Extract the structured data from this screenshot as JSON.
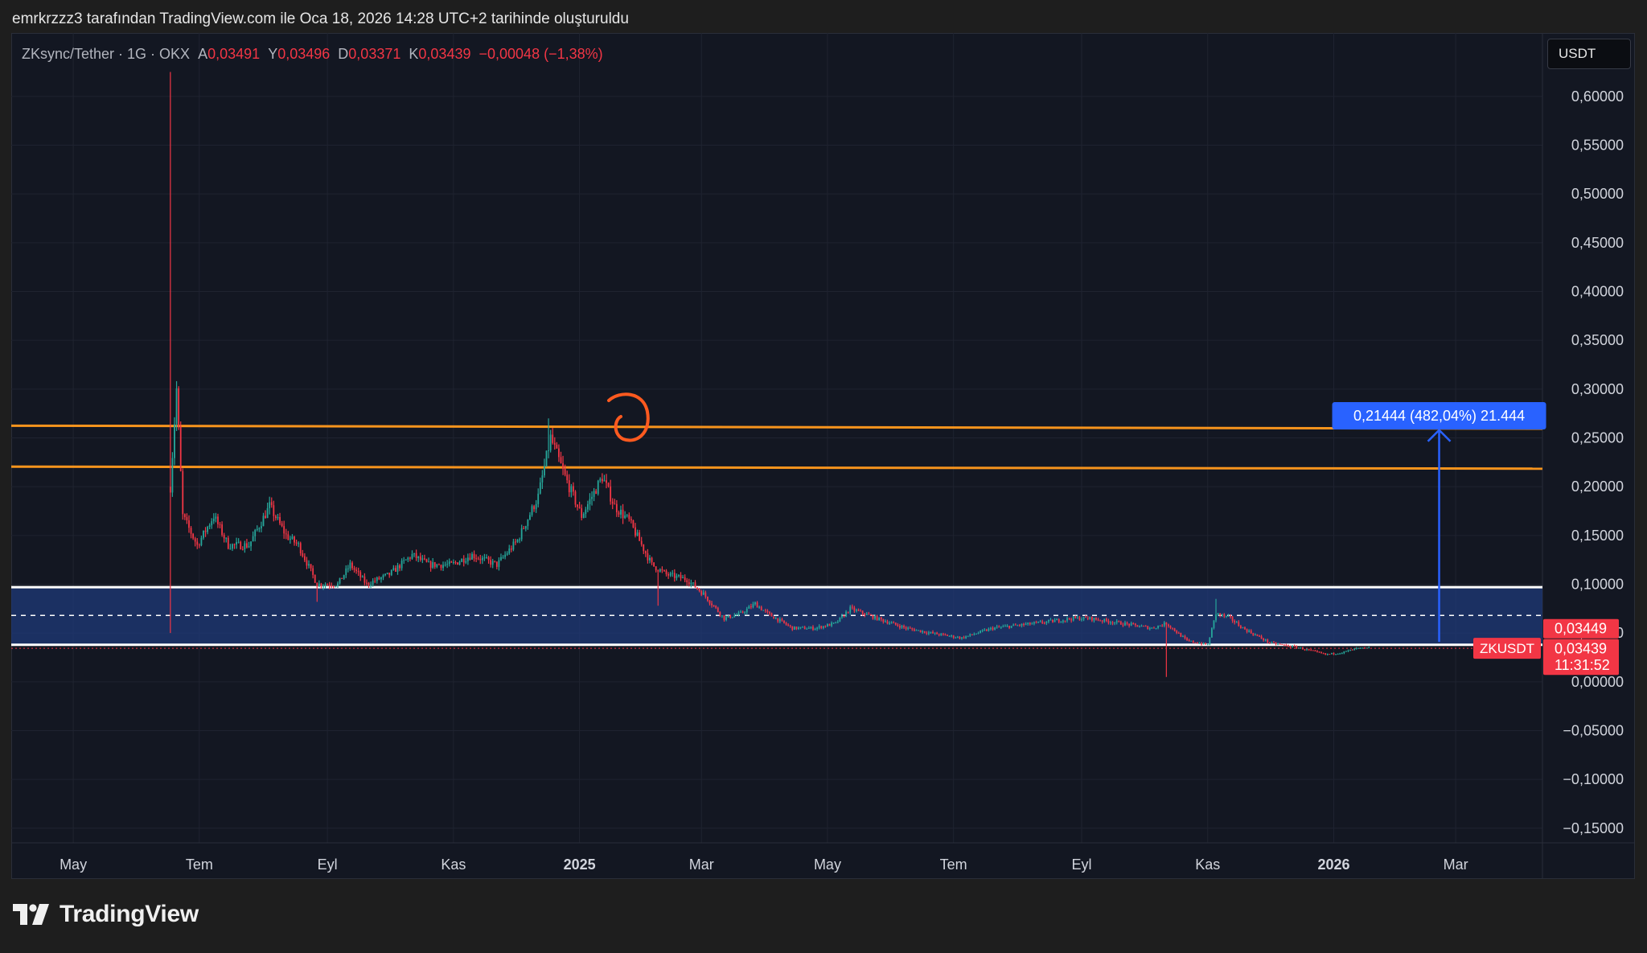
{
  "caption": "emrkrzzz3 tarafından TradingView.com ile Oca 18, 2026 14:28 UTC+2 tarihinde oluşturuldu",
  "legend": {
    "symbol": "ZKsync/Tether · 1G · OKX",
    "open_label": "A",
    "open": "0,03491",
    "high_label": "Y",
    "high": "0,03496",
    "low_label": "D",
    "low": "0,03371",
    "close_label": "K",
    "close": "0,03439",
    "change": "−0,00048 (−1,38%)"
  },
  "currency_button": "USDT",
  "brand": "TradingView",
  "colors": {
    "up": "#26a69a",
    "down": "#f23645",
    "orange": "#f7941d",
    "zone": "#1f3a78",
    "measure": "#2962ff",
    "annotation": "#ff5a1f"
  },
  "chart_data": {
    "type": "candlestick",
    "price_axis_ticks": [
      "0,60000",
      "0,55000",
      "0,50000",
      "0,45000",
      "0,40000",
      "0,35000",
      "0,30000",
      "0,25000",
      "0,20000",
      "0,15000",
      "0,10000",
      "0,05000",
      "0,00000",
      "−0,05000",
      "−0,10000",
      "−0,15000"
    ],
    "price_axis_values": [
      0.6,
      0.55,
      0.5,
      0.45,
      0.4,
      0.35,
      0.3,
      0.25,
      0.2,
      0.15,
      0.1,
      0.05,
      0.0,
      -0.05,
      -0.1,
      -0.15
    ],
    "ylim": [
      -0.165,
      0.665
    ],
    "time_axis_ticks": [
      {
        "label": "May",
        "x": "2024-05-01",
        "bold": false
      },
      {
        "label": "Tem",
        "x": "2024-07-01",
        "bold": false
      },
      {
        "label": "Eyl",
        "x": "2024-09-01",
        "bold": false
      },
      {
        "label": "Kas",
        "x": "2024-11-01",
        "bold": false
      },
      {
        "label": "2025",
        "x": "2025-01-01",
        "bold": true
      },
      {
        "label": "Mar",
        "x": "2025-03-01",
        "bold": false
      },
      {
        "label": "May",
        "x": "2025-05-01",
        "bold": false
      },
      {
        "label": "Tem",
        "x": "2025-07-01",
        "bold": false
      },
      {
        "label": "Eyl",
        "x": "2025-09-01",
        "bold": false
      },
      {
        "label": "Kas",
        "x": "2025-11-01",
        "bold": false
      },
      {
        "label": "2026",
        "x": "2026-01-01",
        "bold": true
      },
      {
        "label": "Mar",
        "x": "2026-03-01",
        "bold": false
      }
    ],
    "xlim": [
      "2024-04-01",
      "2026-04-12"
    ],
    "series": [
      {
        "key_points": [
          [
            "2024-06-17",
            0.2
          ],
          [
            "2024-06-20",
            0.3
          ],
          [
            "2024-06-23",
            0.17
          ],
          [
            "2024-06-30",
            0.14
          ],
          [
            "2024-07-08",
            0.17
          ],
          [
            "2024-07-15",
            0.14
          ],
          [
            "2024-07-25",
            0.14
          ],
          [
            "2024-08-04",
            0.18
          ],
          [
            "2024-08-12",
            0.15
          ],
          [
            "2024-08-18",
            0.14
          ],
          [
            "2024-08-27",
            0.1
          ],
          [
            "2024-09-06",
            0.1
          ],
          [
            "2024-09-12",
            0.12
          ],
          [
            "2024-09-20",
            0.1
          ],
          [
            "2024-10-01",
            0.11
          ],
          [
            "2024-10-12",
            0.13
          ],
          [
            "2024-10-20",
            0.12
          ],
          [
            "2024-10-31",
            0.12
          ],
          [
            "2024-11-10",
            0.13
          ],
          [
            "2024-11-22",
            0.12
          ],
          [
            "2024-12-02",
            0.145
          ],
          [
            "2024-12-12",
            0.19
          ],
          [
            "2024-12-18",
            0.25
          ],
          [
            "2024-12-25",
            0.21
          ],
          [
            "2025-01-02",
            0.17
          ],
          [
            "2025-01-07",
            0.19
          ],
          [
            "2025-01-12",
            0.21
          ],
          [
            "2025-01-18",
            0.18
          ],
          [
            "2025-01-25",
            0.165
          ],
          [
            "2025-02-05",
            0.12
          ],
          [
            "2025-02-12",
            0.11
          ],
          [
            "2025-02-22",
            0.105
          ],
          [
            "2025-03-02",
            0.09
          ],
          [
            "2025-03-12",
            0.065
          ],
          [
            "2025-03-20",
            0.07
          ],
          [
            "2025-03-27",
            0.08
          ],
          [
            "2025-04-02",
            0.07
          ],
          [
            "2025-04-14",
            0.055
          ],
          [
            "2025-04-25",
            0.055
          ],
          [
            "2025-05-05",
            0.06
          ],
          [
            "2025-05-12",
            0.075
          ],
          [
            "2025-05-25",
            0.065
          ],
          [
            "2025-06-08",
            0.055
          ],
          [
            "2025-06-20",
            0.05
          ],
          [
            "2025-07-05",
            0.045
          ],
          [
            "2025-07-20",
            0.055
          ],
          [
            "2025-08-10",
            0.06
          ],
          [
            "2025-08-28",
            0.065
          ],
          [
            "2025-09-05",
            0.065
          ],
          [
            "2025-09-20",
            0.06
          ],
          [
            "2025-10-05",
            0.055
          ],
          [
            "2025-10-12",
            0.06
          ],
          [
            "2025-10-22",
            0.042
          ],
          [
            "2025-11-01",
            0.038
          ],
          [
            "2025-11-05",
            0.07
          ],
          [
            "2025-11-12",
            0.065
          ],
          [
            "2025-11-18",
            0.055
          ],
          [
            "2025-12-01",
            0.04
          ],
          [
            "2025-12-15",
            0.035
          ],
          [
            "2025-12-28",
            0.028
          ],
          [
            "2026-01-05",
            0.03
          ],
          [
            "2026-01-12",
            0.034
          ],
          [
            "2026-01-18",
            0.0344
          ]
        ],
        "spikes": [
          {
            "x": "2024-06-17",
            "high": 0.625,
            "low": 0.05
          },
          {
            "x": "2024-08-27",
            "low": 0.082
          },
          {
            "x": "2024-12-17",
            "high": 0.27
          },
          {
            "x": "2025-02-08",
            "low": 0.078
          },
          {
            "x": "2025-10-12",
            "low": 0.005
          },
          {
            "x": "2025-11-05",
            "high": 0.085
          }
        ]
      }
    ],
    "horizontal_lines": [
      {
        "name": "orange-resistance-upper",
        "y1": 0.2625,
        "y2": 0.2595,
        "from": "2024-04-01",
        "to": "2026-04-12",
        "color": "#f7941d"
      },
      {
        "name": "orange-resistance-lower",
        "y1": 0.2205,
        "y2": 0.2185,
        "from": "2024-04-01",
        "to": "2026-04-12",
        "color": "#f7941d"
      }
    ],
    "support_zone": {
      "top": 0.097,
      "bottom": 0.038,
      "mid": 0.068
    },
    "current_price_line": 0.0344,
    "measure": {
      "label": "0,21444 (482,04%) 21.444",
      "from_y": 0.041,
      "to_y": 0.258,
      "x": "2026-02-21"
    },
    "price_labels": [
      {
        "text": "0,03449",
        "y": 0.0545,
        "color": "#f23645"
      },
      {
        "text": "0,03439",
        "y": 0.034,
        "color": "#f23645"
      },
      {
        "text": "11:31:52",
        "y": 0.017,
        "color": "#f23645"
      }
    ],
    "symbol_tag": "ZKUSDT"
  }
}
